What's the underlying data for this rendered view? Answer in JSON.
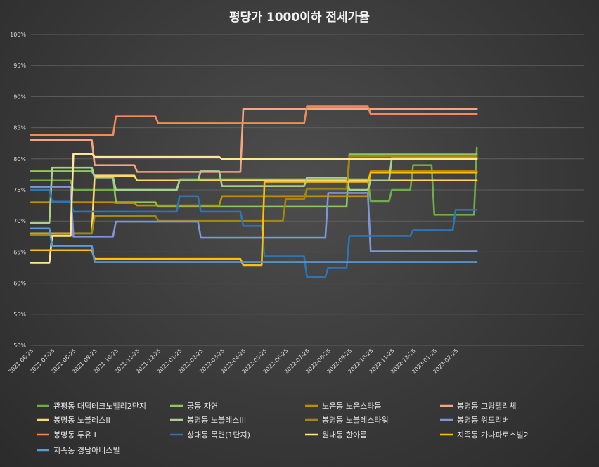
{
  "chart_data": {
    "type": "line",
    "title": "평당가 1000이하 전세가율",
    "ylim": [
      50,
      100
    ],
    "yticks": [
      "50%",
      "55%",
      "60%",
      "65%",
      "70%",
      "75%",
      "80%",
      "85%",
      "90%",
      "95%",
      "100%"
    ],
    "x": [
      "2021-06-25",
      "2021-07-25",
      "2021-08-25",
      "2021-09-25",
      "2021-10-25",
      "2021-11-25",
      "2021-12-25",
      "2022-01-25",
      "2022-02-25",
      "2022-03-25",
      "2022-04-25",
      "2022-05-25",
      "2022-06-25",
      "2022-07-25",
      "2022-08-25",
      "2022-09-25",
      "2022-10-25",
      "2022-11-25",
      "2022-12-25",
      "2023-01-25",
      "2023-02-25",
      "2023-03-15"
    ],
    "xtick_labels": [
      "2021-06-25",
      "2021-07-25",
      "2021-08-25",
      "2021-09-25",
      "2021-10-25",
      "2021-11-25",
      "2021-12-25",
      "2022-01-25",
      "2022-02-25",
      "2022-03-25",
      "2022-04-25",
      "2022-05-25",
      "2022-06-25",
      "2022-07-25",
      "2022-08-25",
      "2022-09-25",
      "2022-10-25",
      "2022-11-25",
      "2022-12-25",
      "2023-01-25",
      "2023-02-25"
    ],
    "grid": true,
    "legend_position": "bottom",
    "series": [
      {
        "name": "관평동 대덕테크노밸리2단지",
        "color": "#70ad47",
        "values": [
          76.5,
          76.5,
          75,
          75,
          75,
          75,
          75,
          76.7,
          76.7,
          76.7,
          76.7,
          76.7,
          76.7,
          76.7,
          76.7,
          76.7,
          73.2,
          75,
          79,
          71,
          71,
          81.8
        ]
      },
      {
        "name": "궁동 자연",
        "color": "#8fc95e",
        "values": [
          78,
          78,
          78,
          77.2,
          73,
          73,
          72.3,
          72.3,
          72.3,
          72.3,
          72.3,
          72.3,
          72.3,
          72.3,
          72.3,
          80.7,
          80.7,
          80.7,
          80.7,
          80.7,
          80.7,
          80.7
        ]
      },
      {
        "name": "노은동 노은스타돔",
        "color": "#bf9000",
        "values": [
          73,
          73,
          73,
          73,
          72.9,
          72.5,
          72.5,
          72.5,
          72.5,
          74,
          74,
          74,
          74,
          74,
          74,
          74,
          78,
          78,
          78,
          78,
          78,
          78
        ]
      },
      {
        "name": "봉명동 그랑펠리체",
        "color": "#f4a582",
        "values": [
          83,
          83,
          83,
          79,
          79,
          77.9,
          77.9,
          77.9,
          77.9,
          77.9,
          88,
          88,
          88,
          88,
          88,
          88,
          88,
          88,
          88,
          88,
          88,
          88
        ]
      },
      {
        "name": "봉명동 노블레스II",
        "color": "#ffd966",
        "values": [
          68,
          68,
          68,
          77.3,
          77.3,
          76.5,
          76.5,
          76.5,
          76.5,
          76.5,
          76.5,
          76.5,
          76.5,
          76.5,
          76.5,
          76.5,
          76.5,
          76.5,
          76.5,
          76.5,
          76.5,
          76.5
        ]
      },
      {
        "name": "봉명동 노블레스III",
        "color": "#a9d18e",
        "values": [
          69.7,
          78.6,
          78.6,
          77,
          75,
          75,
          75,
          76.5,
          78,
          75.6,
          75.6,
          75.6,
          75.6,
          77,
          77,
          75,
          76.5,
          80.2,
          80.2,
          80.2,
          80.2,
          80.2
        ]
      },
      {
        "name": "봉명동 노블레스타워",
        "color": "#a5850a",
        "values": [
          67.8,
          67.8,
          68,
          70.8,
          70.8,
          70.8,
          70,
          70,
          70,
          70,
          70,
          70,
          73.5,
          75.2,
          75.2,
          80.4,
          80.4,
          80.4,
          80.4,
          80.4,
          80.4,
          80.4
        ]
      },
      {
        "name": "봉명동 위드리버",
        "color": "#7f96d6",
        "values": [
          75.5,
          75.5,
          67.5,
          67.5,
          69.9,
          69.9,
          69.9,
          69.9,
          67.3,
          67.3,
          67.3,
          67.3,
          67.3,
          67.3,
          74.5,
          74.5,
          65.1,
          65.1,
          65.1,
          65.1,
          65.1,
          65.1
        ]
      },
      {
        "name": "봉명동 투유 I",
        "color": "#f08c5a",
        "values": [
          83.8,
          83.8,
          83.8,
          83.8,
          86.8,
          86.8,
          85.7,
          85.7,
          85.7,
          85.7,
          85.7,
          85.7,
          85.7,
          88.4,
          88.4,
          88.4,
          87.2,
          87.2,
          87.2,
          87.2,
          87.2,
          87.2
        ]
      },
      {
        "name": "상대동 목련(1단지)",
        "color": "#2e75b6",
        "values": [
          75,
          73.1,
          71.5,
          71.5,
          71.5,
          71.5,
          71.5,
          74,
          71.5,
          71.5,
          69.2,
          64.3,
          64.3,
          61,
          62.5,
          67.6,
          67.6,
          67.6,
          68.5,
          68.5,
          71.8,
          71.8
        ]
      },
      {
        "name": "원내동 한아름",
        "color": "#ffe699",
        "values": [
          63.3,
          67.6,
          80.8,
          80.3,
          80.3,
          80.3,
          80.3,
          80.3,
          80.3,
          80,
          80,
          80,
          80,
          80,
          80,
          80,
          80,
          80,
          80,
          80,
          80,
          80
        ]
      },
      {
        "name": "지족동 가나파로스빌2",
        "color": "#ffc000",
        "values": [
          65.3,
          65.3,
          65.3,
          63.9,
          63.9,
          63.9,
          63.9,
          63.9,
          63.9,
          63.9,
          62.9,
          76.3,
          76.3,
          76.3,
          76.3,
          76.3,
          77.8,
          77.8,
          77.8,
          77.8,
          77.8,
          77.8
        ]
      },
      {
        "name": "지족동 경남아너스빌",
        "color": "#5b9bd5",
        "values": [
          68.8,
          66,
          66,
          63.4,
          63.4,
          63.4,
          63.4,
          63.4,
          63.4,
          63.4,
          63.4,
          63.4,
          63.4,
          63.4,
          63.4,
          63.4,
          63.4,
          63.4,
          63.4,
          63.4,
          63.4,
          63.4
        ]
      }
    ]
  }
}
